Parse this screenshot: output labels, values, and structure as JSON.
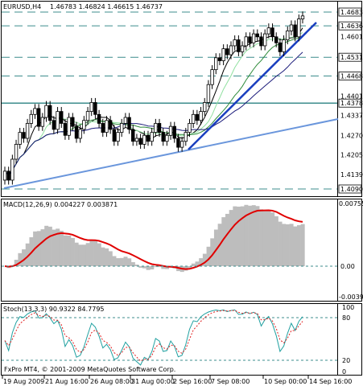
{
  "header": {
    "symbol": "EURUSD,H4",
    "ohlc": "1.46783 1.46824 1.46615 1.46737"
  },
  "price_scale": [
    "1.46830",
    "1.46367",
    "1.46010",
    "1.45316",
    "1.44688",
    "1.44010",
    "1.43780",
    "1.43370",
    "1.42700",
    "1.42050",
    "1.41390",
    "1.40903"
  ],
  "macd": {
    "label": "MACD(12,26,9) 0.004227 0.003871",
    "scale": [
      "0.007558",
      "0.00",
      "-0.003908"
    ]
  },
  "stoch": {
    "label": "Stoch(13,3,3) 90.9322 84.7795",
    "scale": [
      "100",
      "80",
      "20",
      "0"
    ]
  },
  "footer": "FxPro MT4, © 2001-2009 MetaQuotes Software Corp.",
  "time_axis": [
    "19 Aug 2009",
    "21 Aug 16:00",
    "26 Aug 08:00",
    "31 Aug 00:00",
    "2 Sep 16:00",
    "7 Sep 08:00",
    "10 Sep 00:00",
    "14 Sep 16:00"
  ],
  "colors": {
    "trend_light": "#6a96dc",
    "trend_dark": "#1a3fbf",
    "ma_fast": "#90e0a0",
    "ma_mid": "#2e8b3a",
    "ma_slow": "#1a1a7a",
    "ma_black": "#000000",
    "macd_signal": "#e00000",
    "macd_hist": "#bdbdbd",
    "stoch_main": "#20a0a0",
    "stoch_signal": "#e02020",
    "level_line": "#3c8c8c"
  }
}
